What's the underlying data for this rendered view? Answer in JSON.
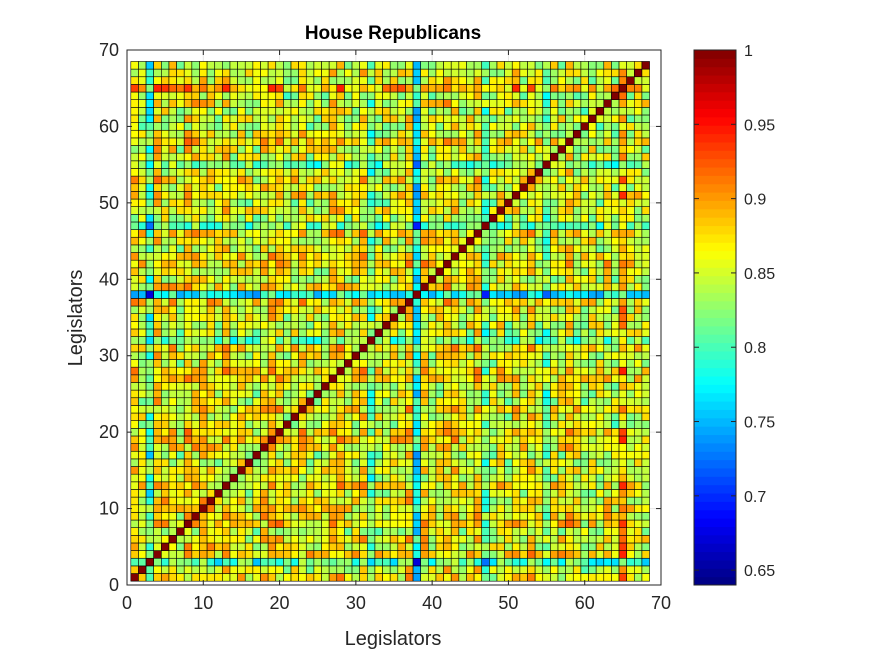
{
  "chart_data": {
    "type": "heatmap",
    "title": "House Republicans",
    "xlabel": "Legislators",
    "ylabel": "Legislators",
    "n": 68,
    "xlim": [
      0,
      70
    ],
    "ylim": [
      0,
      70
    ],
    "xticks": [
      0,
      10,
      20,
      30,
      40,
      50,
      60,
      70
    ],
    "yticks": [
      0,
      10,
      20,
      30,
      40,
      50,
      60,
      70
    ],
    "colorbar": {
      "range": [
        0.64,
        1
      ],
      "ticks": [
        0.65,
        0.7,
        0.75,
        0.8,
        0.85,
        0.9,
        0.95,
        1
      ],
      "tick_labels": [
        "0.65",
        "0.7",
        "0.75",
        "0.8",
        "0.85",
        "0.9",
        "0.95",
        "1"
      ]
    },
    "colormap": "jet",
    "grid": true,
    "diagonal_value": 1,
    "low_agreement_legislators": [
      {
        "legislator": 3,
        "mean_agreement": 0.74
      },
      {
        "legislator": 32,
        "mean_agreement": 0.77
      },
      {
        "legislator": 38,
        "mean_agreement": 0.68
      },
      {
        "legislator": 47,
        "mean_agreement": 0.77
      },
      {
        "legislator": 55,
        "mean_agreement": 0.78
      }
    ],
    "high_agreement_legislators": [
      {
        "legislator": 65,
        "mean_agreement": 0.93
      }
    ],
    "typical_agreement": 0.86
  }
}
